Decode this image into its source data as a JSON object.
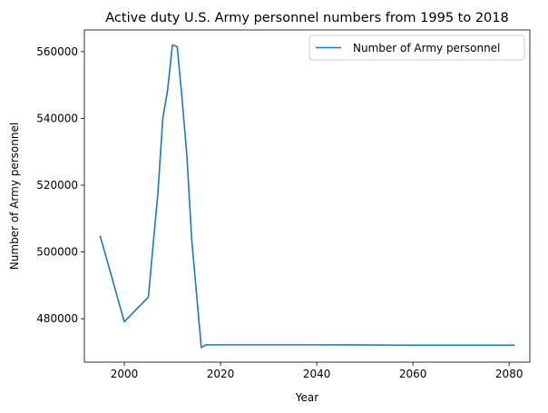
{
  "chart_data": {
    "type": "line",
    "title": "Active duty U.S. Army personnel numbers from 1995 to 2018",
    "xlabel": "Year",
    "ylabel": "Number of Army personnel",
    "xlim": [
      1991.7,
      2084.3
    ],
    "ylim": [
      467000,
      566500
    ],
    "x_ticks": [
      2000,
      2020,
      2040,
      2060,
      2080
    ],
    "y_ticks": [
      480000,
      500000,
      520000,
      540000,
      560000
    ],
    "legend_position": "upper-right",
    "grid": false,
    "colors": {
      "series": "#1f77b4",
      "axes": "#000000",
      "background": "#ffffff"
    },
    "series": [
      {
        "name": "Number of Army personnel",
        "x": [
          1995,
          2000,
          2005,
          2007,
          2008,
          2009,
          2010,
          2011,
          2012,
          2013,
          2014,
          2016,
          2017,
          2020,
          2040,
          2060,
          2081
        ],
        "y": [
          504700,
          479100,
          486500,
          518000,
          540000,
          548500,
          562000,
          561500,
          546000,
          529000,
          504000,
          471400,
          472200,
          472200,
          472200,
          472100,
          472100
        ]
      }
    ]
  }
}
